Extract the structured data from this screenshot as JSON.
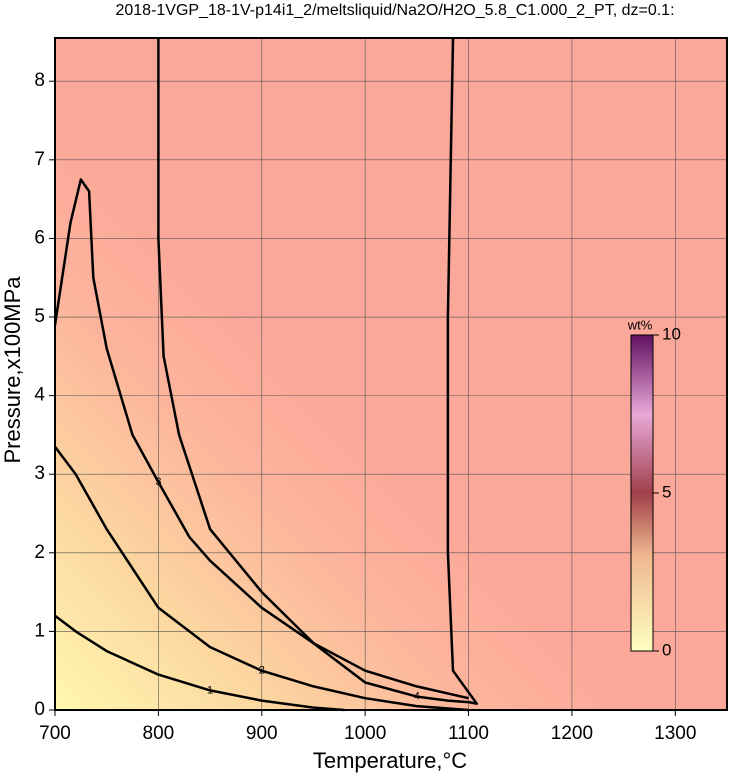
{
  "chart_data": {
    "type": "contour",
    "title": "2018-1VGP_18-1V-p14i1_2/meltsliquid/Na2O/H2O_5.8_C1.000_2_PT, dz=0.1:",
    "x_label": "Temperature,°C",
    "y_label": "Pressure,x100MPa",
    "xlim": [
      700,
      1350
    ],
    "ylim": [
      0,
      8.55
    ],
    "xticks": [
      700,
      800,
      900,
      1000,
      1100,
      1200,
      1300
    ],
    "yticks": [
      0,
      1,
      2,
      3,
      4,
      5,
      6,
      7,
      8
    ],
    "grid": true,
    "contours": [
      {
        "level": 1,
        "x": [
          700,
          720,
          750,
          800,
          850,
          900,
          950,
          980
        ],
        "y": [
          1.2,
          1.0,
          0.75,
          0.45,
          0.25,
          0.12,
          0.03,
          0
        ]
      },
      {
        "level": 2,
        "x": [
          700,
          720,
          750,
          800,
          850,
          900,
          950,
          1000,
          1050,
          1100
        ],
        "y": [
          3.35,
          3.0,
          2.3,
          1.3,
          0.8,
          0.5,
          0.3,
          0.15,
          0.05,
          0
        ]
      },
      {
        "level": 3,
        "x": [
          700,
          715,
          725,
          733,
          737,
          750,
          775,
          800,
          830,
          850,
          900,
          950,
          1000,
          1050,
          1100
        ],
        "y": [
          4.9,
          6.2,
          6.75,
          6.6,
          5.5,
          4.6,
          3.5,
          2.9,
          2.2,
          1.9,
          1.3,
          0.85,
          0.5,
          0.3,
          0.15
        ]
      },
      {
        "level": 4,
        "x": [
          800,
          800,
          805,
          820,
          850,
          900,
          950,
          1000,
          1050,
          1080,
          1100,
          1108,
          1085,
          1080,
          1080,
          1085
        ],
        "y": [
          8.55,
          6,
          4.5,
          3.5,
          2.3,
          1.5,
          0.85,
          0.35,
          0.17,
          0.12,
          0.1,
          0.08,
          0.5,
          2,
          5,
          8.55
        ]
      }
    ],
    "colorbar": {
      "label": "wt%",
      "lim": [
        0,
        10
      ],
      "ticks": [
        0,
        5,
        10
      ]
    }
  }
}
